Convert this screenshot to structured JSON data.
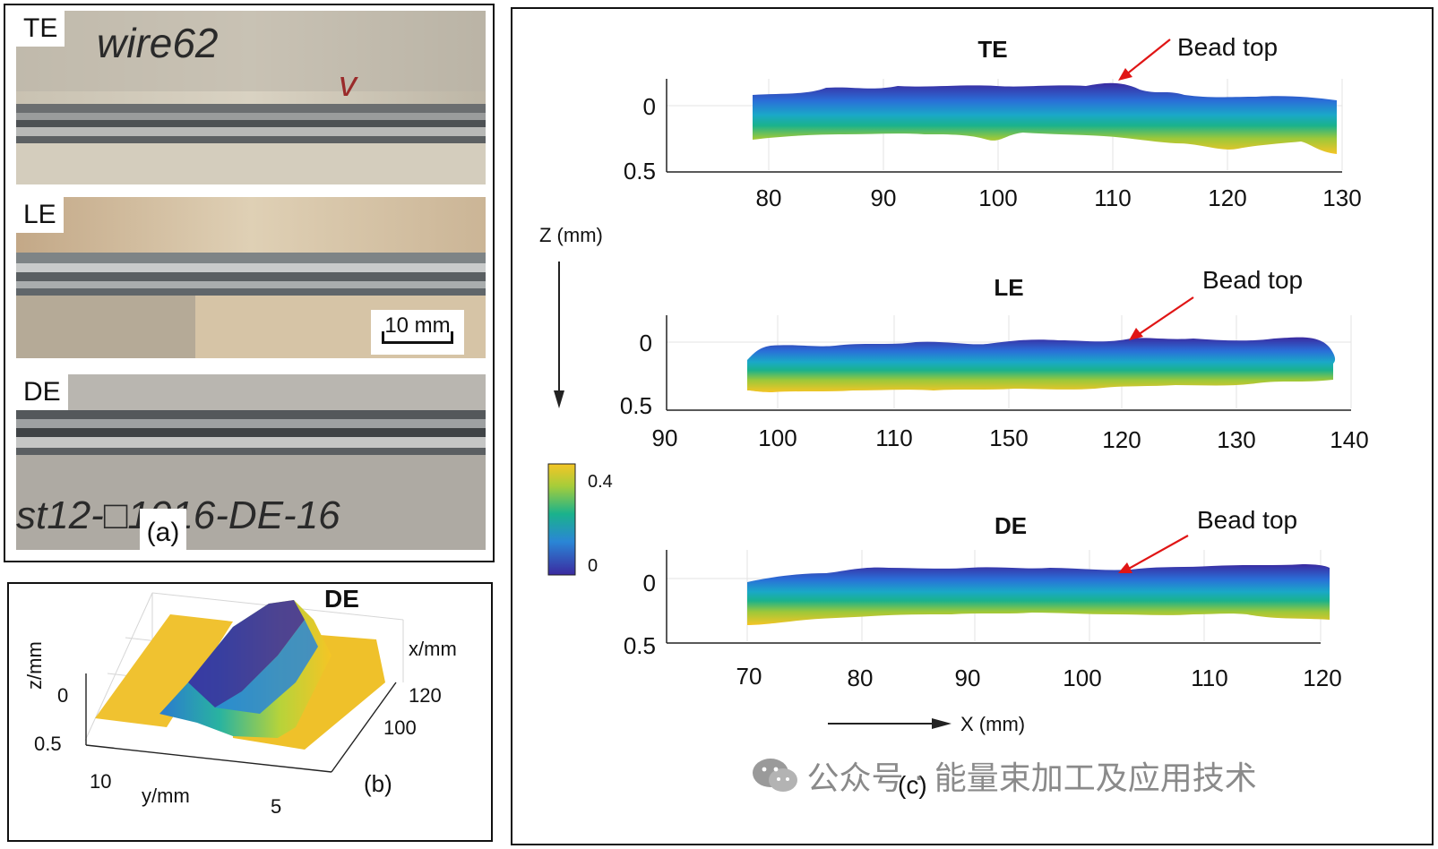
{
  "panel_a": {
    "photos": [
      {
        "tag": "TE",
        "handwriting": "wire62"
      },
      {
        "tag": "LE"
      },
      {
        "tag": "DE",
        "handwriting": "st12-□1016-DE-16"
      }
    ],
    "scale_bar": "10 mm",
    "label": "(a)"
  },
  "panel_b": {
    "title": "DE",
    "z_label": "z/mm",
    "y_label": "y/mm",
    "x_label": "x/mm",
    "z_ticks": [
      "0",
      "0.5"
    ],
    "y_ticks": [
      "10",
      "5"
    ],
    "x_ticks": [
      "120",
      "100"
    ],
    "label": "(b)"
  },
  "panel_c": {
    "label": "(c)",
    "z_axis_label": "Z (mm)",
    "x_axis_label": "X (mm)",
    "colorbar_ticks": [
      "0.4",
      "0"
    ],
    "colors": {
      "low": "#3b2aa0",
      "mid": "#1aa8a0",
      "high": "#f5c525"
    },
    "subplots": [
      {
        "title": "TE",
        "annotation": "Bead top",
        "y_ticks": [
          "0",
          "0.5"
        ],
        "x_ticks": [
          "80",
          "90",
          "100",
          "110",
          "120",
          "130"
        ]
      },
      {
        "title": "LE",
        "annotation": "Bead top",
        "y_ticks": [
          "0",
          "0.5"
        ],
        "x_ticks": [
          "90",
          "100",
          "110",
          "150",
          "120",
          "130",
          "140"
        ]
      },
      {
        "title": "DE",
        "annotation": "Bead top",
        "y_ticks": [
          "0",
          "0.5"
        ],
        "x_ticks": [
          "70",
          "80",
          "90",
          "100",
          "110",
          "120"
        ]
      }
    ]
  },
  "watermark": "公众号 · 能量束加工及应用技术"
}
